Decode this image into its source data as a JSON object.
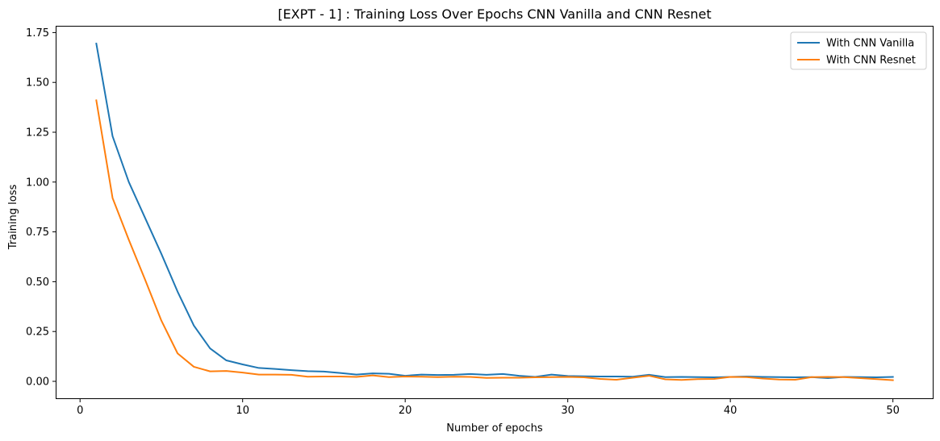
{
  "chart_data": {
    "type": "line",
    "title": "[EXPT - 1] : Training Loss Over Epochs CNN Vanilla and CNN Resnet",
    "xlabel": "Number of epochs",
    "ylabel": "Training loss",
    "xlim": [
      -1.45,
      52.45
    ],
    "ylim": [
      -0.085,
      1.78
    ],
    "xticks": [
      0,
      10,
      20,
      30,
      40,
      50
    ],
    "xtick_labels": [
      "0",
      "10",
      "20",
      "30",
      "40",
      "50"
    ],
    "yticks": [
      0.0,
      0.25,
      0.5,
      0.75,
      1.0,
      1.25,
      1.5,
      1.75
    ],
    "ytick_labels": [
      "0.00",
      "0.25",
      "0.50",
      "0.75",
      "1.00",
      "1.25",
      "1.50",
      "1.75"
    ],
    "grid": false,
    "legend_position": "top-right",
    "x": [
      1,
      2,
      3,
      4,
      5,
      6,
      7,
      8,
      9,
      10,
      11,
      12,
      13,
      14,
      15,
      16,
      17,
      18,
      19,
      20,
      21,
      22,
      23,
      24,
      25,
      26,
      27,
      28,
      29,
      30,
      31,
      32,
      33,
      34,
      35,
      36,
      37,
      38,
      39,
      40,
      41,
      42,
      43,
      44,
      45,
      46,
      47,
      48,
      49,
      50
    ],
    "series": [
      {
        "name": "With CNN Vanilla",
        "color": "#1f77b4",
        "values": [
          1.695,
          1.23,
          1.0,
          0.82,
          0.64,
          0.45,
          0.28,
          0.165,
          0.105,
          0.085,
          0.067,
          0.062,
          0.056,
          0.051,
          0.049,
          0.042,
          0.034,
          0.04,
          0.038,
          0.028,
          0.034,
          0.032,
          0.033,
          0.037,
          0.033,
          0.037,
          0.028,
          0.022,
          0.034,
          0.027,
          0.025,
          0.024,
          0.024,
          0.023,
          0.033,
          0.021,
          0.022,
          0.021,
          0.02,
          0.022,
          0.024,
          0.022,
          0.021,
          0.02,
          0.021,
          0.016,
          0.022,
          0.021,
          0.02,
          0.022
        ]
      },
      {
        "name": "With CNN Resnet",
        "color": "#ff7f0e",
        "values": [
          1.41,
          0.92,
          0.71,
          0.51,
          0.305,
          0.14,
          0.073,
          0.05,
          0.052,
          0.044,
          0.034,
          0.034,
          0.033,
          0.023,
          0.024,
          0.024,
          0.022,
          0.03,
          0.021,
          0.024,
          0.023,
          0.021,
          0.023,
          0.022,
          0.017,
          0.018,
          0.018,
          0.02,
          0.021,
          0.022,
          0.02,
          0.012,
          0.008,
          0.018,
          0.028,
          0.01,
          0.007,
          0.011,
          0.012,
          0.022,
          0.021,
          0.014,
          0.009,
          0.008,
          0.021,
          0.022,
          0.021,
          0.016,
          0.011,
          0.006
        ]
      }
    ]
  }
}
